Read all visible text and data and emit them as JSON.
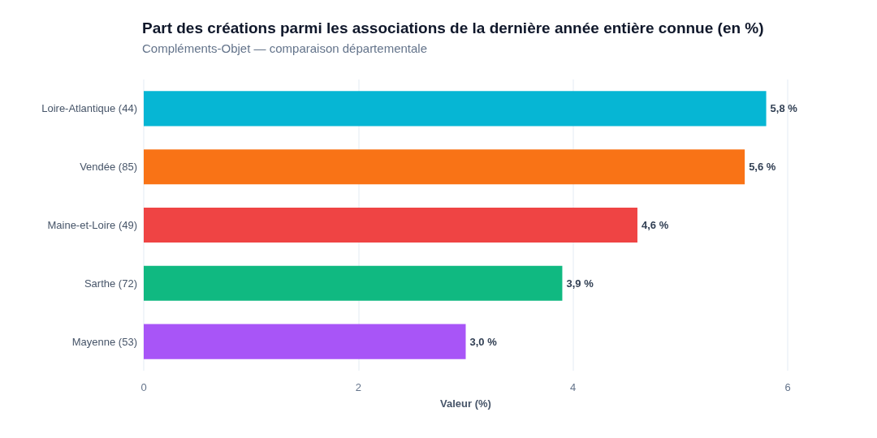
{
  "chart_data": {
    "type": "bar",
    "orientation": "horizontal",
    "title": "Part des créations parmi les associations de la dernière année entière connue (en %)",
    "subtitle": "Compléments-Objet — comparaison départementale",
    "xlabel": "Valeur (%)",
    "categories": [
      "Loire-Atlantique (44)",
      "Vendée (85)",
      "Maine-et-Loire (49)",
      "Sarthe (72)",
      "Mayenne (53)"
    ],
    "values": [
      5.8,
      5.6,
      4.6,
      3.9,
      3.0
    ],
    "value_labels": [
      "5,8 %",
      "5,6 %",
      "4,6 %",
      "3,9 %",
      "3,0 %"
    ],
    "colors": [
      "#06b6d4",
      "#f97316",
      "#ef4444",
      "#10b981",
      "#a855f7"
    ],
    "xlim": [
      0,
      6
    ],
    "xticks": [
      0,
      2,
      4,
      6
    ],
    "grid": "x"
  }
}
